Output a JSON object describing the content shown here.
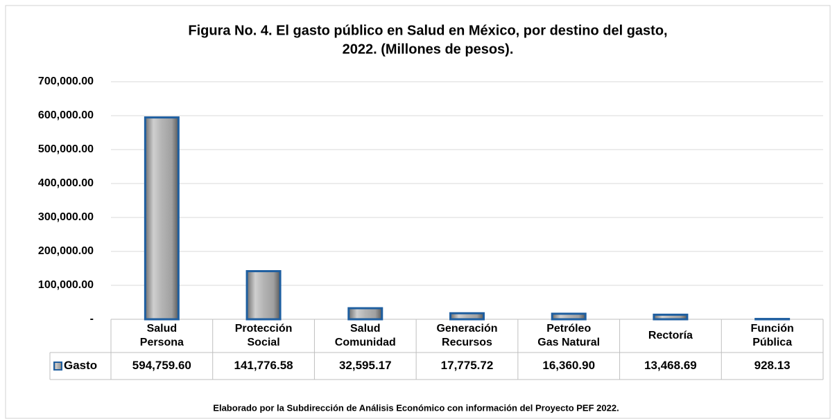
{
  "chart_data": {
    "type": "bar",
    "title": [
      "Figura No. 4. El gasto público en Salud en México, por destino del gasto,",
      "2022. (Millones de pesos)."
    ],
    "categories": [
      [
        "Salud",
        "Persona"
      ],
      [
        "Protección",
        "Social"
      ],
      [
        "Salud",
        "Comunidad"
      ],
      [
        "Generación",
        "Recursos"
      ],
      [
        "Petróleo",
        "Gas Natural"
      ],
      [
        "Rectoría"
      ],
      [
        "Función",
        "Pública"
      ]
    ],
    "series": [
      {
        "name": "Gasto",
        "color": "#1f5fa0",
        "values": [
          594759.6,
          141776.58,
          32595.17,
          17775.72,
          16360.9,
          13468.69,
          928.13
        ],
        "value_labels": [
          "594,759.60",
          "141,776.58",
          "32,595.17",
          "17,775.72",
          "16,360.90",
          "13,468.69",
          "928.13"
        ]
      }
    ],
    "ylim": [
      0,
      700000
    ],
    "yticks": [
      {
        "value": 0,
        "label": "-"
      },
      {
        "value": 100000,
        "label": "100,000.00"
      },
      {
        "value": 200000,
        "label": "200,000.00"
      },
      {
        "value": 300000,
        "label": "300,000.00"
      },
      {
        "value": 400000,
        "label": "400,000.00"
      },
      {
        "value": 500000,
        "label": "500,000.00"
      },
      {
        "value": 600000,
        "label": "600,000.00"
      },
      {
        "value": 700000,
        "label": "700,000.00"
      }
    ],
    "grid": true,
    "note": "Elaborado por la Subdirección de Análisis Económico con información del Proyecto PEF 2022."
  }
}
